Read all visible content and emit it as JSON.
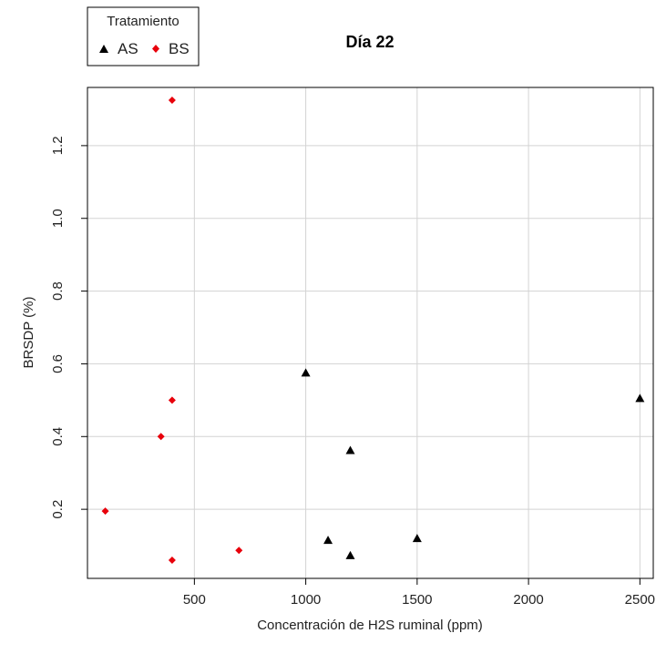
{
  "chart_data": {
    "type": "scatter",
    "title": "Día 22",
    "xlabel": "Concentración de H2S ruminal (ppm)",
    "ylabel": "BRSDP (%)",
    "xlim": [
      20,
      2560
    ],
    "ylim": [
      0.01,
      1.36
    ],
    "x_ticks": [
      500,
      1000,
      1500,
      2000,
      2500
    ],
    "y_ticks": [
      0.2,
      0.4,
      0.6,
      0.8,
      1.0,
      1.2
    ],
    "x_tick_labels": [
      "500",
      "1000",
      "1500",
      "2000",
      "2500"
    ],
    "y_tick_labels": [
      "0.2",
      "0.4",
      "0.6",
      "0.8",
      "1.0",
      "1.2"
    ],
    "grid": true,
    "legend": {
      "title": "Tratamiento",
      "placement": "top-left",
      "entries": [
        {
          "label": "AS",
          "marker": "triangle",
          "color": "#000000"
        },
        {
          "label": "BS",
          "marker": "diamond",
          "color": "#e8000b"
        }
      ]
    },
    "series": [
      {
        "name": "AS",
        "marker": "triangle",
        "color": "#000000",
        "points": [
          {
            "x": 1000,
            "y": 0.575
          },
          {
            "x": 1100,
            "y": 0.115
          },
          {
            "x": 1200,
            "y": 0.362
          },
          {
            "x": 1200,
            "y": 0.073
          },
          {
            "x": 1500,
            "y": 0.12
          },
          {
            "x": 2500,
            "y": 0.505
          }
        ]
      },
      {
        "name": "BS",
        "marker": "diamond",
        "color": "#e8000b",
        "points": [
          {
            "x": 100,
            "y": 0.195
          },
          {
            "x": 350,
            "y": 0.4
          },
          {
            "x": 400,
            "y": 1.325
          },
          {
            "x": 400,
            "y": 0.5
          },
          {
            "x": 400,
            "y": 0.06
          },
          {
            "x": 700,
            "y": 0.087
          }
        ]
      }
    ]
  }
}
